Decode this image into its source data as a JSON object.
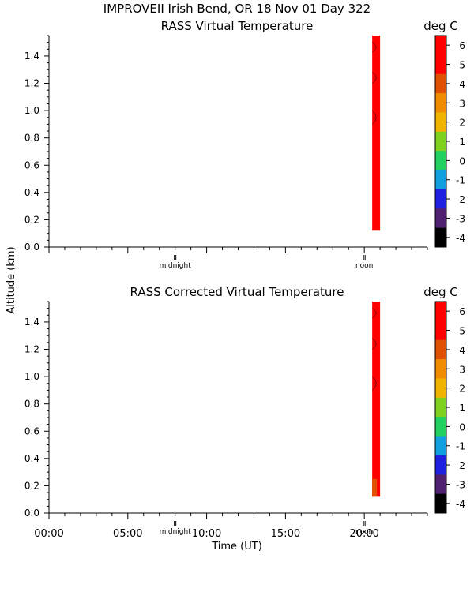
{
  "header": {
    "title": "IMPROVEII  Irish Bend, OR  18 Nov 01 Day 322"
  },
  "ylabel_shared": "Altitude (km)",
  "colorbar": {
    "unit": "deg C",
    "ticks": [
      "6",
      "5",
      "4",
      "3",
      "2",
      "1",
      "0",
      "-1",
      "-2",
      "-3",
      "-4"
    ],
    "colors": [
      "#ff0000",
      "#ff0000",
      "#e05000",
      "#f08c00",
      "#f0b400",
      "#80d020",
      "#20d060",
      "#10a0e0",
      "#2020e0",
      "#502070",
      "#000000"
    ]
  },
  "chart_data": [
    {
      "type": "heatmap",
      "title": "RASS Virtual Temperature",
      "xlabel": "",
      "ylabel": "Altitude (km)",
      "yticks": [
        "0.0",
        "0.2",
        "0.4",
        "0.6",
        "0.8",
        "1.0",
        "1.2",
        "1.4"
      ],
      "ylim": [
        0,
        1.55
      ],
      "xlim": [
        0,
        24
      ],
      "x_markers": [
        {
          "label": "midnight",
          "hour": 8
        },
        {
          "label": "noon",
          "hour": 20
        }
      ],
      "data_block": {
        "x_start_hour": 20.5,
        "x_end_hour": 21.0,
        "alt_start_km": 0.12,
        "alt_end_km": 1.55,
        "value_deg_c": 6
      }
    },
    {
      "type": "heatmap",
      "title": "RASS Corrected Virtual Temperature",
      "xlabel": "Time (UT)",
      "ylabel": "Altitude (km)",
      "yticks": [
        "0.0",
        "0.2",
        "0.4",
        "0.6",
        "0.8",
        "1.0",
        "1.2",
        "1.4"
      ],
      "xticks": [
        "00:00",
        "05:00",
        "10:00",
        "15:00",
        "20:00"
      ],
      "ylim": [
        0,
        1.55
      ],
      "xlim": [
        0,
        24
      ],
      "x_markers": [
        {
          "label": "midnight",
          "hour": 8
        },
        {
          "label": "noon",
          "hour": 20
        }
      ],
      "data_block": {
        "x_start_hour": 20.5,
        "x_end_hour": 21.0,
        "alt_start_km": 0.12,
        "alt_end_km": 1.55,
        "value_deg_c": 6
      },
      "orange_patch": {
        "x_start_hour": 20.5,
        "x_end_hour": 20.8,
        "alt_start_km": 0.12,
        "alt_end_km": 0.25,
        "value_deg_c": 4
      }
    }
  ]
}
